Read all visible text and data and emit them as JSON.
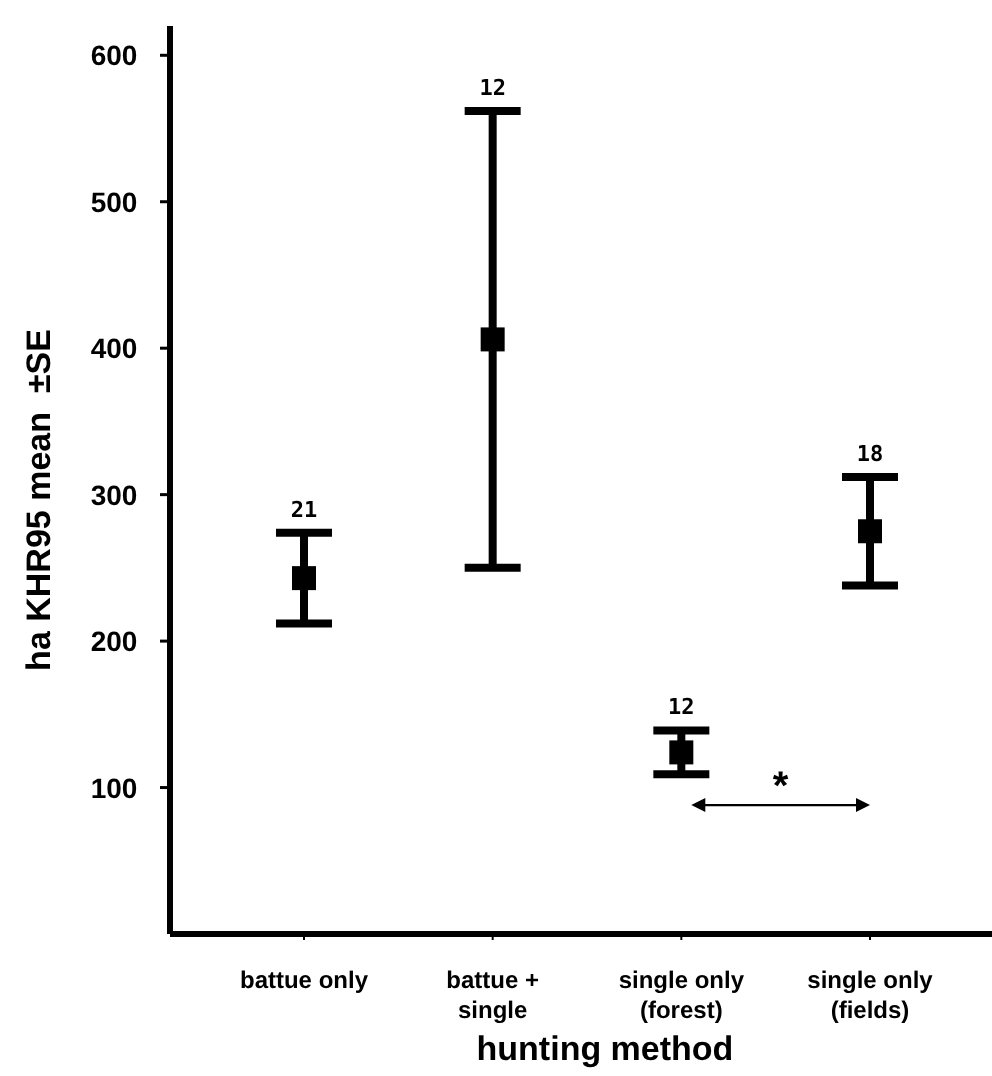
{
  "chart_data": {
    "type": "scatter",
    "xlabel": "hunting method",
    "ylabel": "ha KHR95 mean  ±SE",
    "categories": [
      "battue only",
      "battue +\nsingle",
      "single only\n(forest)",
      "single only\n(fields)"
    ],
    "values": [
      243,
      406,
      124,
      275
    ],
    "errors": [
      31,
      156,
      15,
      37
    ],
    "color": "#000000",
    "ylim": [
      0,
      620
    ],
    "yticks": [
      100,
      200,
      300,
      400,
      500,
      600
    ],
    "grid": false,
    "marker": "square",
    "annotations": [
      {
        "text": "21",
        "x": "battue only",
        "y": 274
      },
      {
        "text": "12",
        "x": "battue +\nsingle",
        "y": 562
      },
      {
        "text": "12",
        "x": "single only\n(forest)",
        "y": 139
      },
      {
        "text": "18",
        "x": "single only\n(fields)",
        "y": 312
      },
      "*"
    ]
  }
}
